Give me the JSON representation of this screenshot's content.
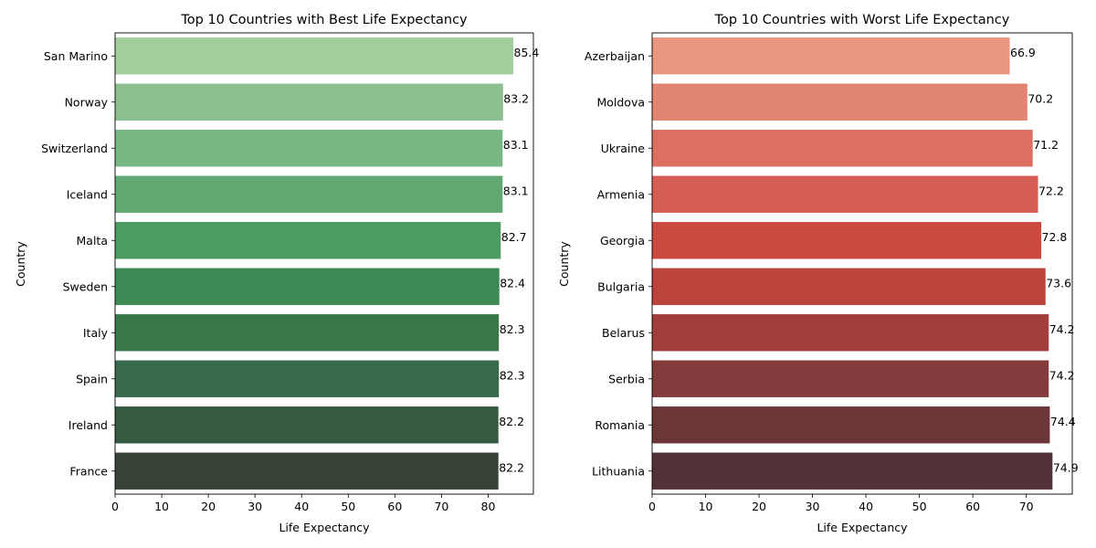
{
  "chart_data": [
    {
      "type": "bar",
      "orientation": "horizontal",
      "title": "Top 10 Countries with Best Life Expectancy",
      "xlabel": "Life Expectancy",
      "ylabel": "Country",
      "categories": [
        "San Marino",
        "Norway",
        "Switzerland",
        "Iceland",
        "Malta",
        "Sweden",
        "Italy",
        "Spain",
        "Ireland",
        "France"
      ],
      "values": [
        85.4,
        83.2,
        83.1,
        83.1,
        82.7,
        82.4,
        82.3,
        82.3,
        82.2,
        82.2
      ],
      "value_labels": [
        "85.4",
        "83.2",
        "83.1",
        "83.1",
        "82.7",
        "82.4",
        "82.3",
        "82.3",
        "82.2",
        "82.2"
      ],
      "xlim": [
        0,
        89.7
      ],
      "xticks": [
        "0",
        "10",
        "20",
        "30",
        "40",
        "50",
        "60",
        "70",
        "80"
      ],
      "colors": [
        "#a1cf9b",
        "#8cbf90",
        "#76b783",
        "#62a873",
        "#4b9b63",
        "#3e8a55",
        "#3a7749",
        "#376a4a",
        "#375841",
        "#374337"
      ],
      "grid": false,
      "legend": "none"
    },
    {
      "type": "bar",
      "orientation": "horizontal",
      "title": "Top 10 Countries with Worst Life Expectancy",
      "xlabel": "Life Expectancy",
      "ylabel": "Country",
      "categories": [
        "Azerbaijan",
        "Moldova",
        "Ukraine",
        "Armenia",
        "Georgia",
        "Bulgaria",
        "Belarus",
        "Serbia",
        "Romania",
        "Lithuania"
      ],
      "values": [
        66.9,
        70.2,
        71.2,
        72.2,
        72.8,
        73.6,
        74.2,
        74.2,
        74.4,
        74.9
      ],
      "value_labels": [
        "66.9",
        "70.2",
        "71.2",
        "72.2",
        "72.8",
        "73.6",
        "74.2",
        "74.2",
        "74.4",
        "74.9"
      ],
      "xlim": [
        0,
        78.6
      ],
      "xticks": [
        "0",
        "10",
        "20",
        "30",
        "40",
        "50",
        "60",
        "70"
      ],
      "colors": [
        "#e99680",
        "#e28472",
        "#dd6f62",
        "#d65d53",
        "#cc4940",
        "#bb433b",
        "#a03f3a",
        "#843b3b",
        "#6b3637",
        "#513236"
      ],
      "grid": false,
      "legend": "none"
    }
  ]
}
